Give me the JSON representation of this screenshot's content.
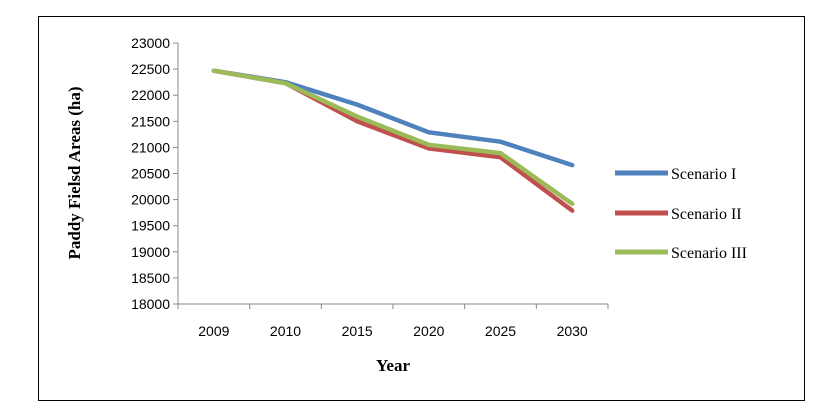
{
  "chart_data": {
    "type": "line",
    "title": "",
    "xlabel": "Year",
    "ylabel": "Paddy Fielsd Areas  (ha)",
    "categories": [
      "2009",
      "2010",
      "2015",
      "2020",
      "2025",
      "2030"
    ],
    "ylim": [
      18000,
      23000
    ],
    "yticks": [
      18000,
      18500,
      19000,
      19500,
      20000,
      20500,
      21000,
      21500,
      22000,
      22500,
      23000
    ],
    "grid": false,
    "legend_position": "right",
    "series": [
      {
        "name": "Scenario I",
        "color": "#4F81BD",
        "values": [
          22470,
          22250,
          21820,
          21290,
          21110,
          20660
        ]
      },
      {
        "name": "Scenario II",
        "color": "#C0504D",
        "values": [
          22470,
          22230,
          21500,
          20980,
          20810,
          19790
        ]
      },
      {
        "name": "Scenario III",
        "color": "#9BBB59",
        "values": [
          22470,
          22230,
          21590,
          21050,
          20890,
          19920
        ]
      }
    ]
  }
}
